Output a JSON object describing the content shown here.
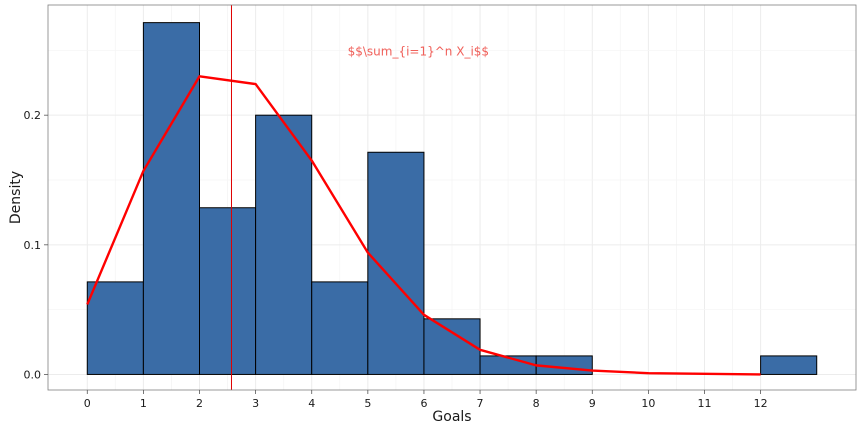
{
  "chart_data": {
    "type": "bar",
    "title": "",
    "xlabel": "Goals",
    "ylabel": "Density",
    "xlim": [
      -0.7,
      13.7
    ],
    "ylim": [
      -0.012,
      0.285
    ],
    "grid": true,
    "x_ticks": [
      0,
      1,
      2,
      3,
      4,
      5,
      6,
      7,
      8,
      9,
      10,
      11,
      12
    ],
    "y_ticks": [
      0.0,
      0.1,
      0.2
    ],
    "y_tick_labels": [
      "0.0",
      "0.1",
      "0.2"
    ],
    "bins": [
      {
        "start": 0,
        "end": 1,
        "density": 0.0714
      },
      {
        "start": 1,
        "end": 2,
        "density": 0.2714
      },
      {
        "start": 2,
        "end": 3,
        "density": 0.1286
      },
      {
        "start": 3,
        "end": 4,
        "density": 0.2
      },
      {
        "start": 4,
        "end": 5,
        "density": 0.0714
      },
      {
        "start": 5,
        "end": 6,
        "density": 0.1714
      },
      {
        "start": 6,
        "end": 7,
        "density": 0.0429
      },
      {
        "start": 7,
        "end": 8,
        "density": 0.0143
      },
      {
        "start": 8,
        "end": 9,
        "density": 0.0143
      },
      {
        "start": 12,
        "end": 13,
        "density": 0.0143
      }
    ],
    "bar_color": "#3A6CA6",
    "curve": {
      "color": "#FF0000",
      "x": [
        0,
        1,
        2,
        3,
        4,
        5,
        6,
        7,
        8,
        9,
        10,
        11,
        12
      ],
      "y": [
        0.054,
        0.157,
        0.23,
        0.224,
        0.165,
        0.094,
        0.046,
        0.019,
        0.007,
        0.003,
        0.001,
        0.0005,
        0.0
      ]
    },
    "vline": {
      "x": 2.57,
      "color": "#E00000"
    },
    "annotation": {
      "text": "$$\\sum_{i=1}^n X_i$$",
      "x": 5.9,
      "y": 0.249,
      "color": "#F0605A"
    }
  }
}
